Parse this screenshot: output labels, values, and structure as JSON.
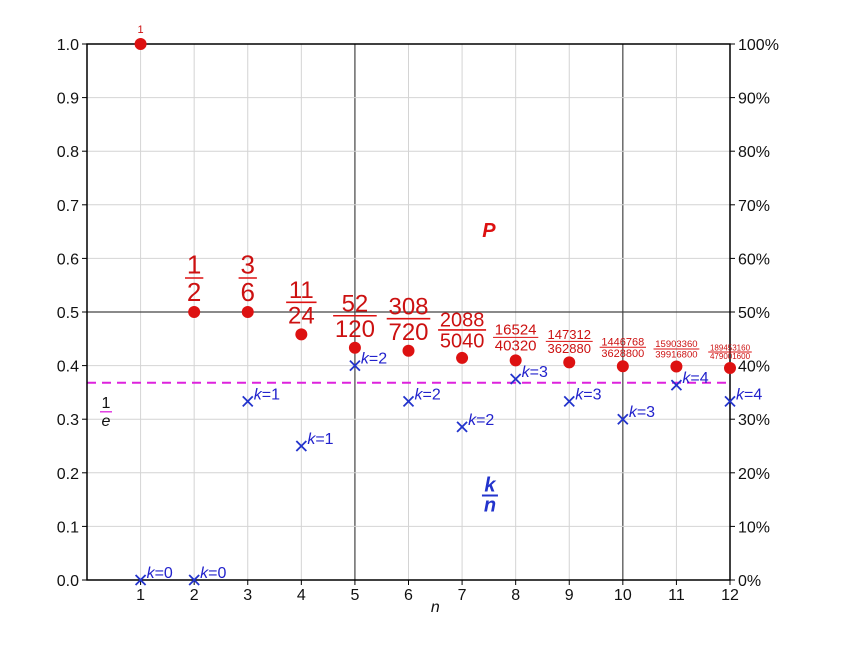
{
  "chart_data": {
    "type": "scatter",
    "xlabel": "n",
    "x": [
      1,
      2,
      3,
      4,
      5,
      6,
      7,
      8,
      9,
      10,
      11,
      12
    ],
    "xlim": [
      0,
      12
    ],
    "ylim": [
      0,
      1
    ],
    "y_ticks": [
      "0.0",
      "0.1",
      "0.2",
      "0.3",
      "0.4",
      "0.5",
      "0.6",
      "0.7",
      "0.8",
      "0.9",
      "1.0"
    ],
    "y2_ticks": [
      "0%",
      "10%",
      "20%",
      "30%",
      "40%",
      "50%",
      "60%",
      "70%",
      "80%",
      "90%",
      "100%"
    ],
    "grid": "major every 5 on x, every 0.5 on y; minor every unit / 0.1",
    "series": [
      {
        "name": "P",
        "color": "#dd1111",
        "marker": "circle",
        "values": [
          1.0,
          0.5,
          0.5,
          0.4583,
          0.4333,
          0.4278,
          0.4143,
          0.4098,
          0.406,
          0.3987,
          0.3984,
          0.3955
        ],
        "labels": [
          {
            "num": "1",
            "den": ""
          },
          {
            "num": "1",
            "den": "2"
          },
          {
            "num": "3",
            "den": "6"
          },
          {
            "num": "11",
            "den": "24"
          },
          {
            "num": "52",
            "den": "120"
          },
          {
            "num": "308",
            "den": "720"
          },
          {
            "num": "2088",
            "den": "5040"
          },
          {
            "num": "16524",
            "den": "40320"
          },
          {
            "num": "147312",
            "den": "362880"
          },
          {
            "num": "1446768",
            "den": "3628800"
          },
          {
            "num": "15903360",
            "den": "39916800"
          },
          {
            "num": "189453160",
            "den": "479001600"
          }
        ]
      },
      {
        "name": "k/n",
        "color": "#2233cc",
        "marker": "x",
        "values": [
          0,
          0,
          0.3333,
          0.25,
          0.4,
          0.3333,
          0.2857,
          0.375,
          0.3333,
          0.3,
          0.3636,
          0.3333
        ],
        "labels": [
          "k=0",
          "k=0",
          "k=1",
          "k=1",
          "k=2",
          "k=2",
          "k=2",
          "k=3",
          "k=3",
          "k=3",
          "k=4",
          "k=4"
        ]
      }
    ],
    "reference_line": {
      "value": 0.3679,
      "label_num": "1",
      "label_den": "e",
      "color": "#dd22dd",
      "style": "dashed"
    },
    "annotations": [
      {
        "text": "P",
        "color": "#dd1111"
      },
      {
        "num": "k",
        "den": "n",
        "color": "#2233cc"
      }
    ]
  }
}
